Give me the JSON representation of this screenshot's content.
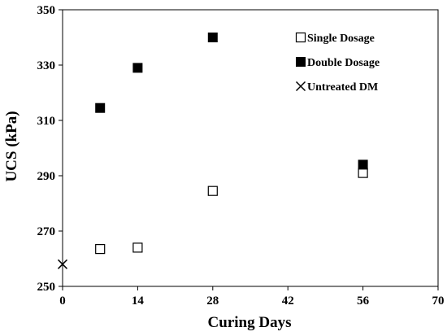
{
  "chart_data": {
    "type": "scatter",
    "xlabel": "Curing Days",
    "ylabel": "UCS (kPa)",
    "xlim": [
      0,
      70
    ],
    "ylim": [
      250,
      350
    ],
    "xticks": [
      0,
      14,
      28,
      42,
      56,
      70
    ],
    "yticks": [
      250,
      270,
      290,
      310,
      330,
      350
    ],
    "grid": false,
    "legend_position": "top-right",
    "series": [
      {
        "name": "Single Dosage",
        "marker": "open-square",
        "color": "#000000",
        "x": [
          7,
          14,
          28,
          56
        ],
        "y": [
          263.5,
          264,
          284.5,
          291
        ]
      },
      {
        "name": "Double Dosage",
        "marker": "filled-square",
        "color": "#000000",
        "x": [
          7,
          14,
          28,
          56
        ],
        "y": [
          314.5,
          329,
          340,
          294
        ]
      },
      {
        "name": "Untreated DM",
        "marker": "cross",
        "color": "#000000",
        "x": [
          0
        ],
        "y": [
          258
        ]
      }
    ]
  }
}
